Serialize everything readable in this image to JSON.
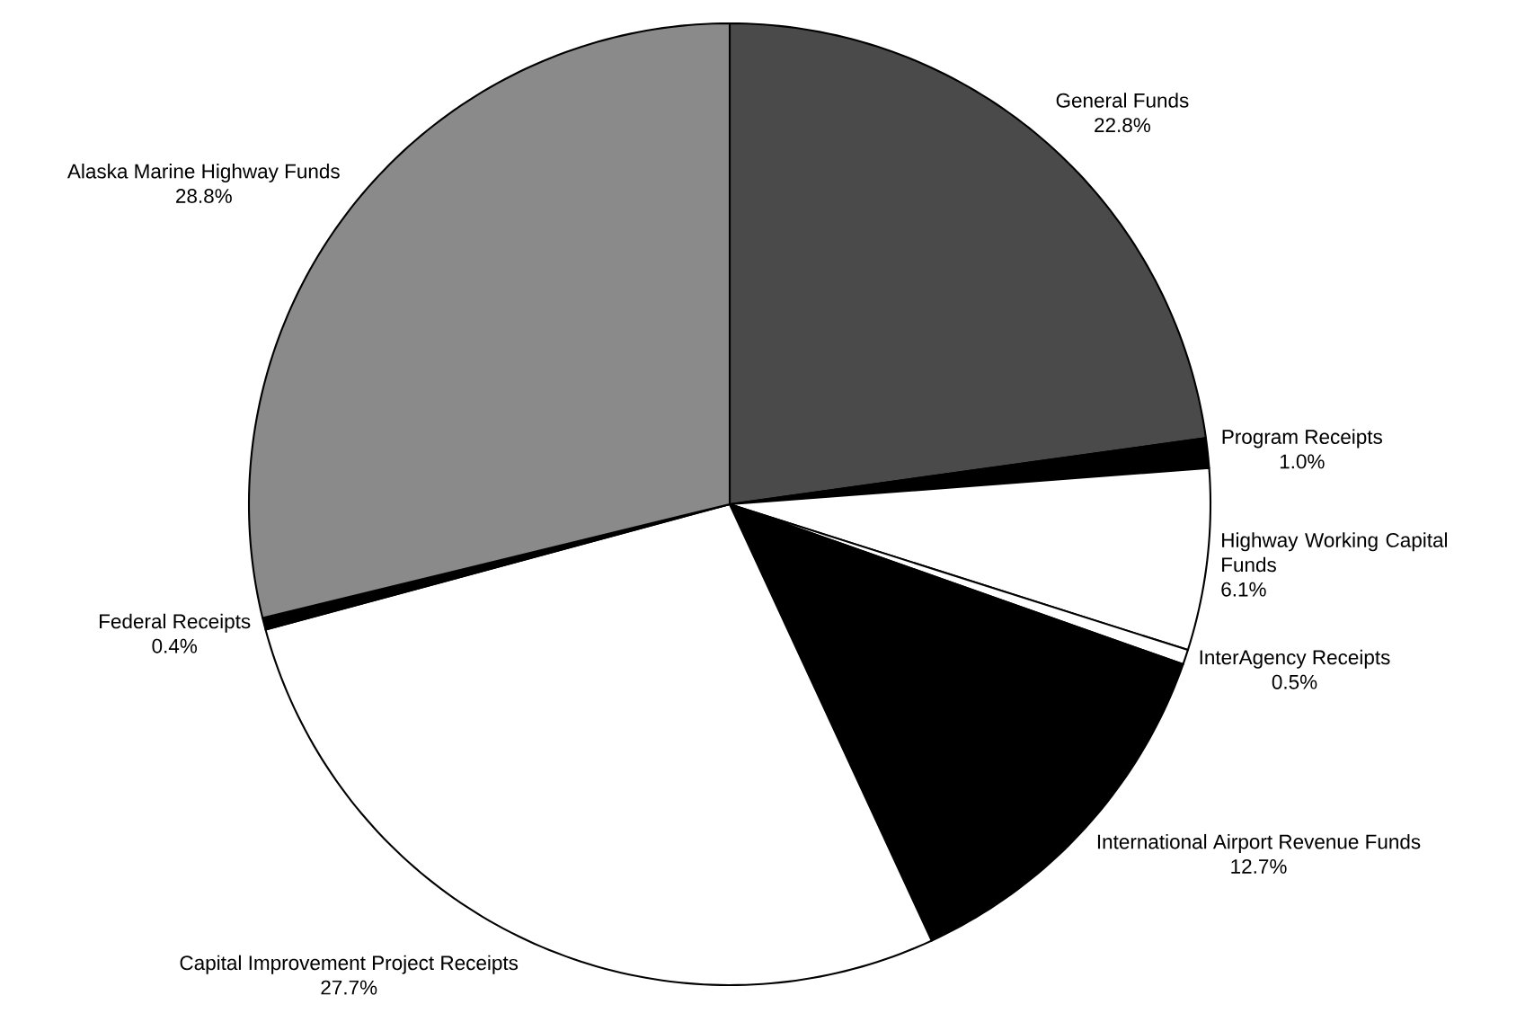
{
  "chart_data": {
    "type": "pie",
    "categories": [
      "General Funds",
      "Program Receipts",
      "Highway Working Capital Funds",
      "InterAgency Receipts",
      "International Airport Revenue Funds",
      "Capital Improvement Project Receipts",
      "Federal Receipts",
      "Alaska Marine Highway Funds"
    ],
    "values": [
      22.8,
      1.0,
      6.1,
      0.5,
      12.7,
      27.7,
      0.4,
      28.8
    ],
    "value_labels": [
      "22.8%",
      "1.0%",
      "6.1%",
      "0.5%",
      "12.7%",
      "27.7%",
      "0.4%",
      "28.8%"
    ],
    "colors": [
      "#4a4a4a",
      "#000000",
      "#ffffff",
      "#ffffff",
      "#000000",
      "#ffffff",
      "#000000",
      "#8a8a8a"
    ]
  }
}
